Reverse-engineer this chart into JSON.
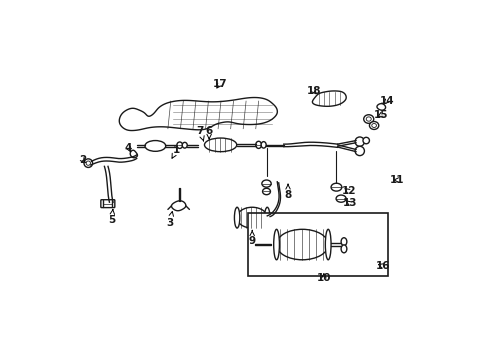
{
  "background_color": "#ffffff",
  "line_color": "#1a1a1a",
  "fig_width": 4.9,
  "fig_height": 3.6,
  "dpi": 100,
  "label_positions": {
    "1": [
      0.31,
      0.585,
      0.295,
      0.558
    ],
    "2": [
      0.048,
      0.555,
      0.06,
      0.54
    ],
    "3": [
      0.29,
      0.38,
      0.298,
      0.415
    ],
    "4": [
      0.175,
      0.59,
      0.185,
      0.57
    ],
    "5": [
      0.128,
      0.388,
      0.132,
      0.42
    ],
    "6": [
      0.4,
      0.638,
      0.4,
      0.612
    ],
    "7": [
      0.375,
      0.638,
      0.385,
      0.607
    ],
    "8": [
      0.62,
      0.458,
      0.62,
      0.49
    ],
    "9": [
      0.52,
      0.33,
      0.52,
      0.368
    ],
    "10": [
      0.72,
      0.228,
      0.72,
      0.242
    ],
    "11": [
      0.925,
      0.5,
      0.905,
      0.5
    ],
    "12": [
      0.79,
      0.468,
      0.77,
      0.482
    ],
    "13": [
      0.792,
      0.435,
      0.775,
      0.448
    ],
    "14": [
      0.895,
      0.72,
      0.88,
      0.705
    ],
    "15": [
      0.88,
      0.682,
      0.862,
      0.672
    ],
    "16": [
      0.885,
      0.26,
      0.862,
      0.268
    ],
    "17": [
      0.43,
      0.768,
      0.415,
      0.748
    ],
    "18": [
      0.692,
      0.748,
      0.705,
      0.732
    ]
  }
}
